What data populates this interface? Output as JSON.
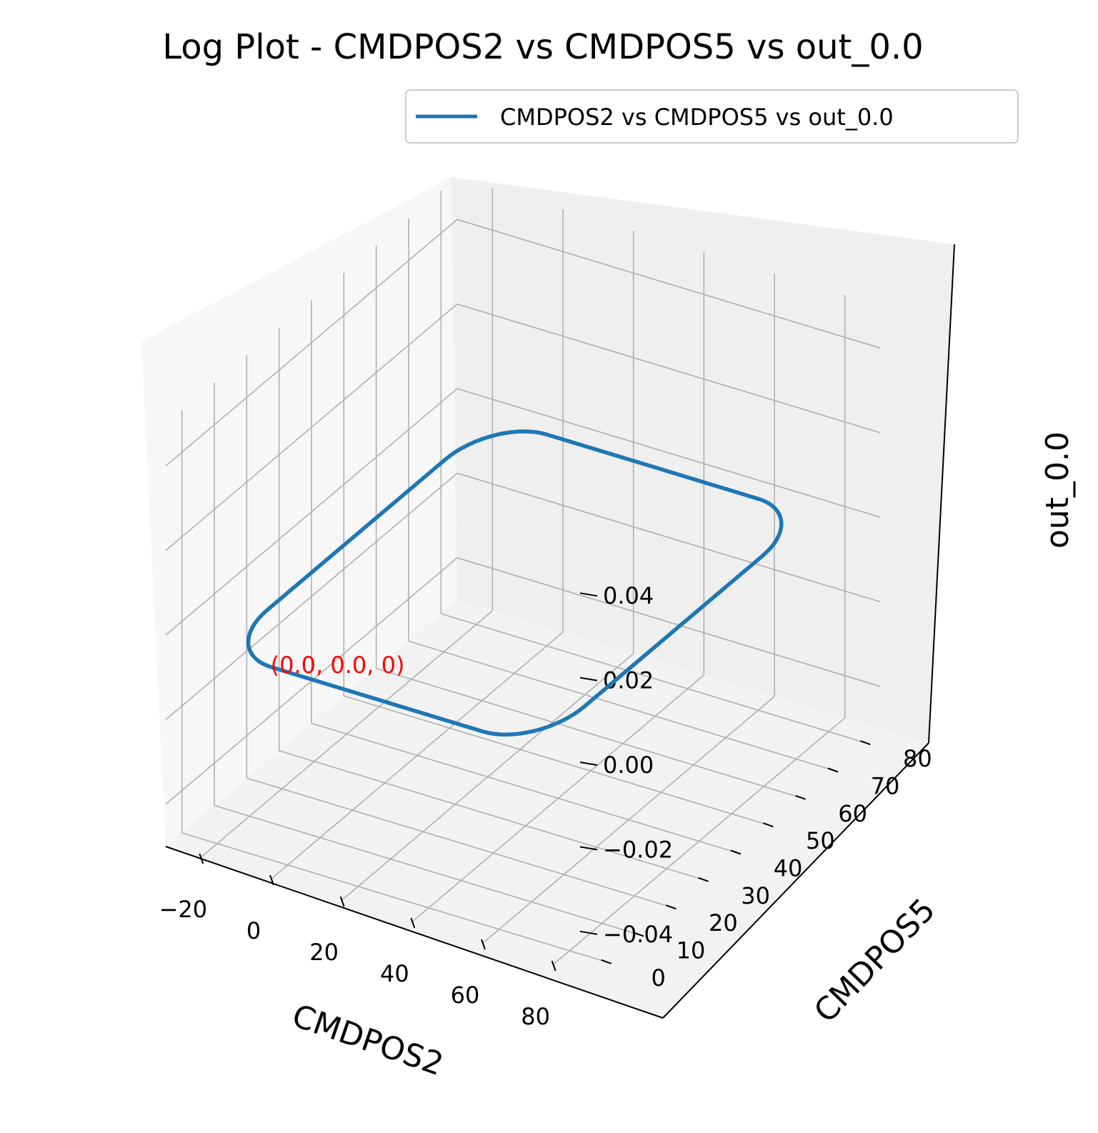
{
  "chart_data": {
    "type": "line",
    "subtype": "3d-line",
    "title": "Log Plot - CMDPOS2 vs CMDPOS5 vs out_0.0",
    "xlabel": "CMDPOS2",
    "ylabel": "CMDPOS5",
    "zlabel": "out_0.0",
    "xlim": [
      -30,
      90
    ],
    "ylim": [
      -5,
      85
    ],
    "zlim": [
      -0.05,
      0.05
    ],
    "xticks": [
      "−20",
      "0",
      "20",
      "40",
      "60",
      "80"
    ],
    "xtick_values": [
      -20,
      0,
      20,
      40,
      60,
      80
    ],
    "yticks": [
      "0",
      "10",
      "20",
      "30",
      "40",
      "50",
      "60",
      "70",
      "80"
    ],
    "ytick_values": [
      0,
      10,
      20,
      30,
      40,
      50,
      60,
      70,
      80
    ],
    "zticks": [
      "−0.04",
      "−0.02",
      "0.00",
      "0.02",
      "0.04"
    ],
    "ztick_values": [
      -0.04,
      -0.02,
      0.0,
      0.02,
      0.04
    ],
    "grid": true,
    "legend": {
      "position": "top-right",
      "entries": [
        "CMDPOS2 vs CMDPOS5 vs out_0.0"
      ]
    },
    "series": [
      {
        "name": "CMDPOS2 vs CMDPOS5 vs out_0.0",
        "color": "#1f77b4",
        "shape": "rounded-rectangle",
        "x_range": [
          -15,
          75
        ],
        "y_range": [
          -5,
          80
        ],
        "corner_radius": 15,
        "z": 0
      }
    ],
    "annotations": [
      {
        "text": "(0.0, 0.0, 0)",
        "x": 0.0,
        "y": 0.0,
        "z": 0,
        "color": "#ff0000"
      }
    ]
  }
}
